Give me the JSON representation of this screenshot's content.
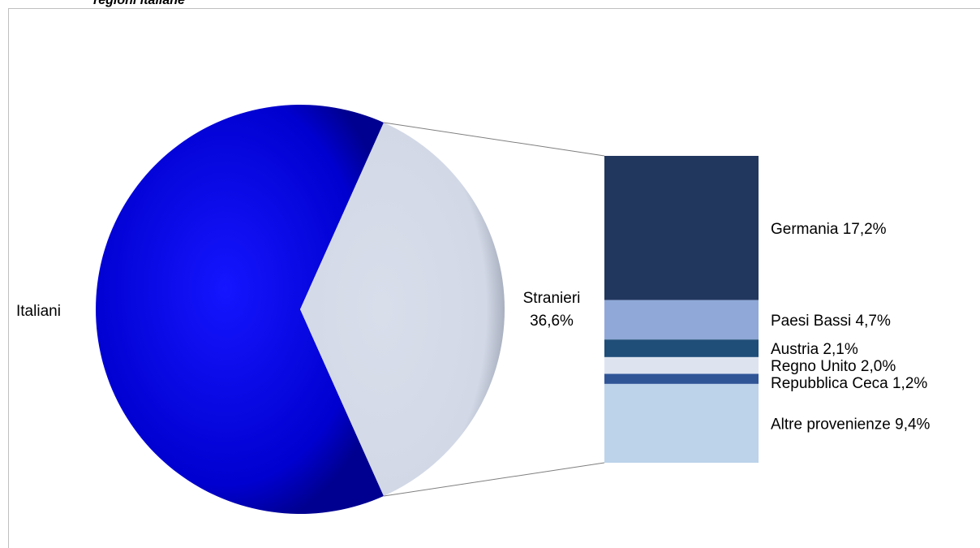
{
  "title": "regioni italiane",
  "chart_data": {
    "type": "pie",
    "title": "regioni italiane",
    "main": {
      "slices": [
        {
          "label": "Italiani",
          "value": 63.4,
          "value_label": "",
          "color": "#0a0ad6"
        },
        {
          "label": "Stranieri",
          "value": 36.6,
          "value_label": "36,6%",
          "color": "#d5dbe8"
        }
      ]
    },
    "breakdown": {
      "of": "Stranieri",
      "type": "stacked-bar",
      "items": [
        {
          "label": "Germania",
          "value": 17.2,
          "value_label": "17,2%",
          "color": "#22375e"
        },
        {
          "label": "Paesi Bassi",
          "value": 4.7,
          "value_label": "4,7%",
          "color": "#8fa8d7"
        },
        {
          "label": "Austria",
          "value": 2.1,
          "value_label": "2,1%",
          "color": "#1f4e79"
        },
        {
          "label": "Regno Unito",
          "value": 2.0,
          "value_label": "2,0%",
          "color": "#dde4f0"
        },
        {
          "label": "Repubblica Ceca",
          "value": 1.2,
          "value_label": "1,2%",
          "color": "#2f5597"
        },
        {
          "label": "Altre provenienze",
          "value": 9.4,
          "value_label": "9,4%",
          "color": "#bcd3ea"
        }
      ]
    },
    "legend": "none"
  }
}
